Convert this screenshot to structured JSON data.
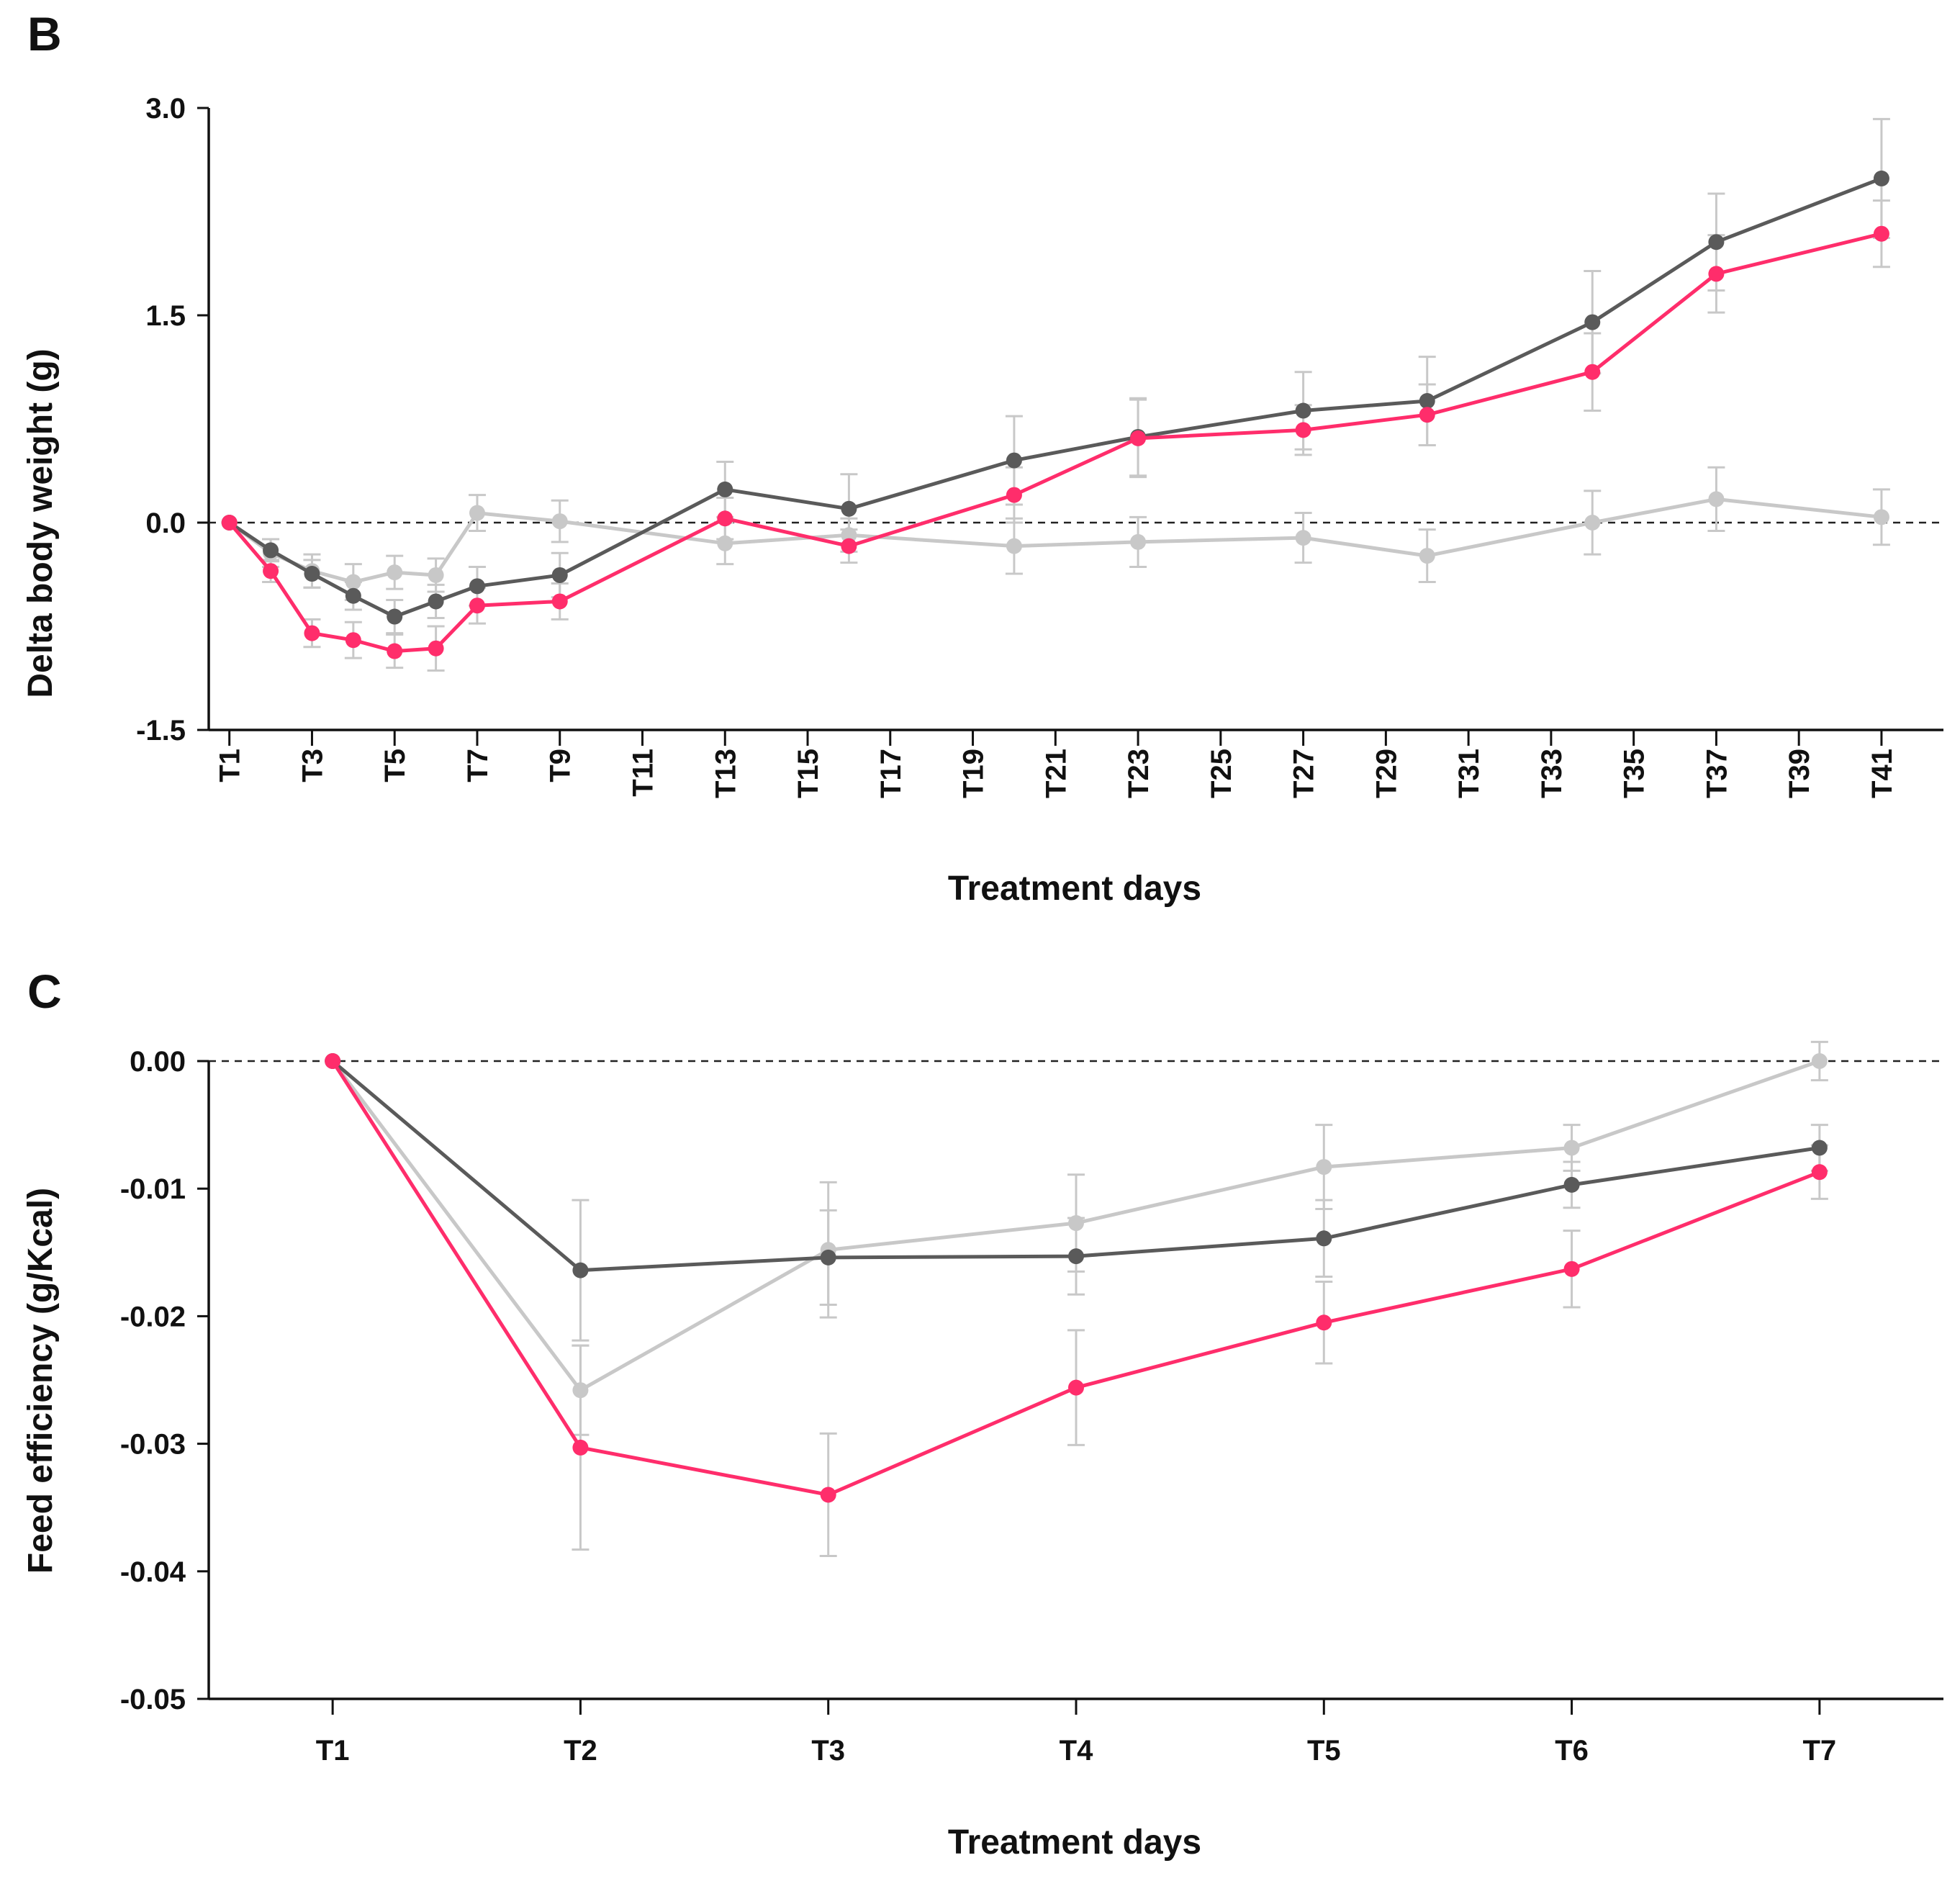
{
  "chart_data": [
    {
      "type": "line",
      "panel_label": "B",
      "title": "",
      "xlabel": "Treatment days",
      "ylabel": "Delta body weight (g)",
      "ylim": [
        -1.5,
        3.0
      ],
      "y_ticks": [
        -1.5,
        0.0,
        1.5,
        3.0
      ],
      "y_tick_labels": [
        "-1.5",
        "0.0",
        "1.5",
        "3.0"
      ],
      "x_range": [
        0.5,
        42.5
      ],
      "x_ticks": [
        1,
        3,
        5,
        7,
        9,
        11,
        13,
        15,
        17,
        19,
        21,
        23,
        25,
        27,
        29,
        31,
        33,
        35,
        37,
        39,
        41
      ],
      "x_tick_labels": [
        "T1",
        "T3",
        "T5",
        "T7",
        "T9",
        "T11",
        "T13",
        "T15",
        "T17",
        "T19",
        "T21",
        "T23",
        "T25",
        "T27",
        "T29",
        "T31",
        "T33",
        "T35",
        "T37",
        "T39",
        "T41"
      ],
      "x": [
        1,
        2,
        3,
        4,
        5,
        6,
        7,
        9,
        13,
        16,
        20,
        23,
        27,
        30,
        34,
        37,
        41
      ],
      "reference_line": 0,
      "grid": false,
      "series": [
        {
          "name": "light gray series",
          "color": "#c8c8c8",
          "values": [
            0.0,
            -0.22,
            -0.35,
            -0.43,
            -0.36,
            -0.38,
            0.07,
            0.01,
            -0.15,
            -0.09,
            -0.17,
            -0.14,
            -0.11,
            -0.24,
            0.0,
            0.17,
            0.04
          ],
          "errors": [
            0.0,
            0.1,
            0.12,
            0.13,
            0.12,
            0.12,
            0.13,
            0.15,
            0.15,
            0.12,
            0.2,
            0.18,
            0.18,
            0.19,
            0.23,
            0.23,
            0.2
          ]
        },
        {
          "name": "dark gray series",
          "color": "#5a5a5a",
          "values": [
            0.0,
            -0.2,
            -0.37,
            -0.53,
            -0.68,
            -0.57,
            -0.46,
            -0.38,
            0.24,
            0.1,
            0.45,
            0.62,
            0.81,
            0.88,
            1.45,
            2.03,
            2.49
          ],
          "errors": [
            0.0,
            0.08,
            0.1,
            0.1,
            0.12,
            0.12,
            0.14,
            0.16,
            0.2,
            0.25,
            0.32,
            0.28,
            0.28,
            0.32,
            0.37,
            0.35,
            0.43
          ]
        },
        {
          "name": "pink series",
          "color": "#ff2d6b",
          "values": [
            0.0,
            -0.35,
            -0.8,
            -0.85,
            -0.93,
            -0.91,
            -0.6,
            -0.57,
            0.03,
            -0.17,
            0.2,
            0.61,
            0.67,
            0.78,
            1.09,
            1.8,
            2.09
          ],
          "errors": [
            0.0,
            0.08,
            0.1,
            0.13,
            0.12,
            0.16,
            0.13,
            0.13,
            0.15,
            0.12,
            0.2,
            0.28,
            0.18,
            0.22,
            0.28,
            0.28,
            0.24
          ]
        }
      ]
    },
    {
      "type": "line",
      "panel_label": "C",
      "title": "",
      "xlabel": "Treatment days",
      "ylabel": "Feed efficiency (g/Kcal)",
      "ylim": [
        -0.05,
        0.0
      ],
      "y_ticks": [
        -0.05,
        -0.04,
        -0.03,
        -0.02,
        -0.01,
        0.0
      ],
      "y_tick_labels": [
        "-0.05",
        "-0.04",
        "-0.03",
        "-0.02",
        "-0.01",
        "0.00"
      ],
      "x_range": [
        0.5,
        7.5
      ],
      "x_ticks": [
        1,
        2,
        3,
        4,
        5,
        6,
        7
      ],
      "x_tick_labels": [
        "T1",
        "T2",
        "T3",
        "T4",
        "T5",
        "T6",
        "T7"
      ],
      "x": [
        1,
        2,
        3,
        4,
        5,
        6,
        7
      ],
      "reference_line": 0,
      "grid": false,
      "series": [
        {
          "name": "light gray series",
          "color": "#c8c8c8",
          "values": [
            0.0,
            -0.0258,
            -0.0148,
            -0.0127,
            -0.0083,
            -0.0068,
            0.0
          ],
          "errors": [
            0.0,
            0.0035,
            0.0053,
            0.0038,
            0.0033,
            0.0018,
            0.0015
          ]
        },
        {
          "name": "dark gray series",
          "color": "#5a5a5a",
          "values": [
            0.0,
            -0.0164,
            -0.0154,
            -0.0153,
            -0.0139,
            -0.0097,
            -0.0068
          ],
          "errors": [
            0.0,
            0.0055,
            0.0037,
            0.003,
            0.003,
            0.0018,
            0.0018
          ]
        },
        {
          "name": "pink series",
          "color": "#ff2d6b",
          "values": [
            0.0,
            -0.0303,
            -0.034,
            -0.0256,
            -0.0205,
            -0.0163,
            -0.0087
          ],
          "errors": [
            0.0,
            0.008,
            0.0048,
            0.0045,
            0.0032,
            0.003,
            0.0021
          ]
        }
      ]
    }
  ]
}
